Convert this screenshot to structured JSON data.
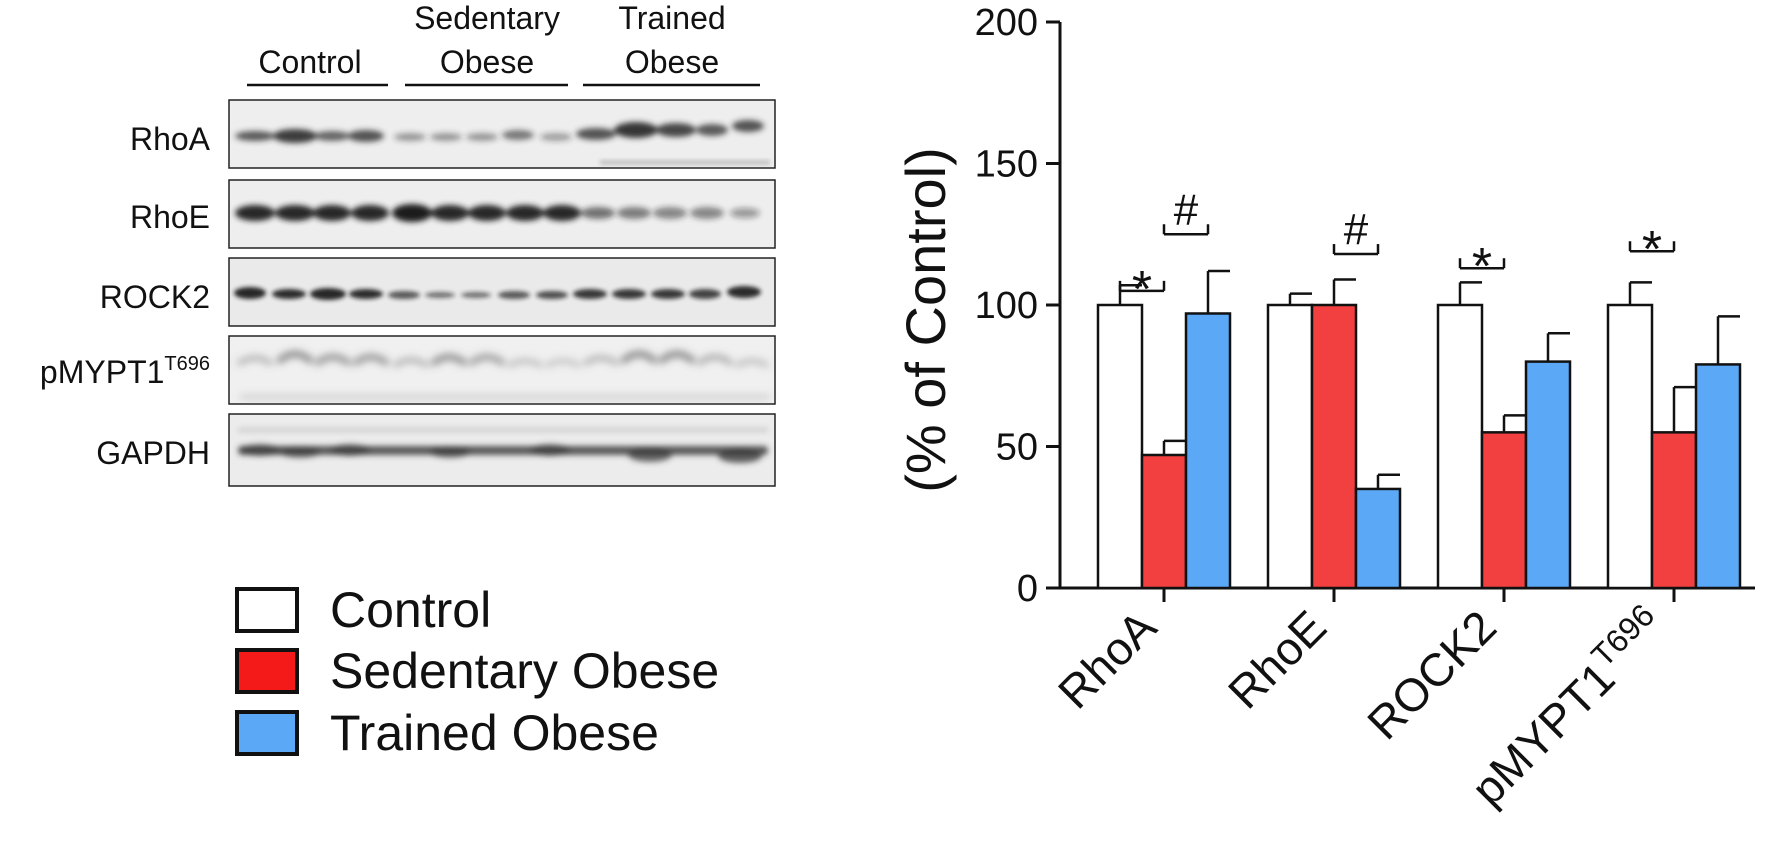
{
  "blot": {
    "groups": [
      {
        "line1": "",
        "line2": "Control"
      },
      {
        "line1": "Sedentary",
        "line2": "Obese"
      },
      {
        "line1": "Trained",
        "line2": "Obese"
      }
    ],
    "rows": [
      {
        "label": "RhoA",
        "sup": ""
      },
      {
        "label": "RhoE",
        "sup": ""
      },
      {
        "label": "ROCK2",
        "sup": ""
      },
      {
        "label": "pMYPT1",
        "sup": "T696"
      },
      {
        "label": "GAPDH",
        "sup": ""
      }
    ]
  },
  "legend": {
    "items": [
      {
        "label": "Control",
        "color": "#ffffff"
      },
      {
        "label": "Sedentary Obese",
        "color": "#f24040"
      },
      {
        "label": "Trained Obese",
        "color": "#5ba8f7"
      }
    ]
  },
  "chart_data": {
    "type": "bar",
    "ylabel": "(% of Control)",
    "ylim": [
      0,
      200
    ],
    "yticks": [
      0,
      50,
      100,
      150,
      200
    ],
    "categories": [
      {
        "label": "RhoA",
        "sup": ""
      },
      {
        "label": "RhoE",
        "sup": ""
      },
      {
        "label": "ROCK2",
        "sup": ""
      },
      {
        "label": "pMYPT1",
        "sup": "T696"
      }
    ],
    "series": [
      {
        "name": "Control",
        "color": "#ffffff",
        "values": [
          100,
          100,
          100,
          100
        ],
        "errors": [
          7,
          4,
          8,
          8
        ]
      },
      {
        "name": "Sedentary Obese",
        "color": "#f24040",
        "values": [
          47,
          100,
          55,
          55
        ],
        "errors": [
          5,
          9,
          6,
          16
        ]
      },
      {
        "name": "Trained Obese",
        "color": "#5ba8f7",
        "values": [
          97,
          35,
          80,
          79
        ],
        "errors": [
          15,
          5,
          10,
          17
        ]
      }
    ],
    "annotations": [
      {
        "category": 0,
        "from": 0,
        "to": 1,
        "y": 105,
        "text": "*"
      },
      {
        "category": 0,
        "from": 1,
        "to": 2,
        "y": 125,
        "text": "#"
      },
      {
        "category": 1,
        "from": 1,
        "to": 2,
        "y": 118,
        "text": "#"
      },
      {
        "category": 2,
        "from": 0,
        "to": 1,
        "y": 113,
        "text": "*"
      },
      {
        "category": 3,
        "from": 0,
        "to": 1,
        "y": 119,
        "text": "*"
      }
    ]
  }
}
